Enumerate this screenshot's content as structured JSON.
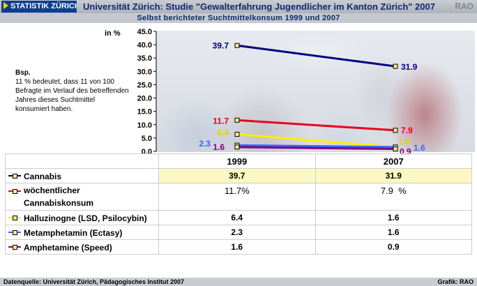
{
  "header": {
    "logo": "STATISTIK ZÜRICH",
    "title": "Universität Zürich: Studie \"Gewalterfahrung Jugendlicher im Kanton Zürich\" 2007",
    "tag": "RAO"
  },
  "subtitle": "Selbst berichteter Suchtmittelkonsum 1999 und 2007",
  "note": {
    "title": "Bsp.",
    "text": "11 % bedeutet, dass 11 von 100 Befragte im Verlauf des betreffenden Jahres dieses Suchtmittel konsumiert haben."
  },
  "chart_data": {
    "type": "line",
    "ylabel": "in %",
    "ylim": [
      0,
      45
    ],
    "y_ticks": [
      "0.0",
      "5.0",
      "10.0",
      "15.0",
      "20.0",
      "25.0",
      "30.0",
      "35.0",
      "40.0",
      "45.0"
    ],
    "x": [
      "1999",
      "2007"
    ],
    "series": [
      {
        "name": "Cannabis",
        "values": [
          39.7,
          31.9
        ],
        "labels": [
          "39.7",
          "31.9"
        ],
        "color": "#000080"
      },
      {
        "name": "wöchentlicher Cannabiskonsum",
        "values": [
          11.7,
          7.9
        ],
        "labels": [
          "11.7",
          "7.9"
        ],
        "color": "#e8001c"
      },
      {
        "name": "Halluzinogne (LSD, Psilocybin)",
        "values": [
          6.4,
          1.6
        ],
        "labels": [
          "6.4",
          "1.6"
        ],
        "color": "#ffee00"
      },
      {
        "name": "Metamphetamin (Ectasy)",
        "values": [
          2.3,
          1.6
        ],
        "labels": [
          "2.3",
          "1.6"
        ],
        "color": "#3366ff"
      },
      {
        "name": "Amphetamine (Speed)",
        "values": [
          1.6,
          0.9
        ],
        "labels": [
          "1.6",
          "0.9"
        ],
        "color": "#800080"
      }
    ]
  },
  "table": {
    "years": [
      "1999",
      "2007"
    ],
    "rows": [
      {
        "label": "Cannabis",
        "v1999": "39.7",
        "v2007": "31.9"
      },
      {
        "label_line1": "wöchentlicher",
        "label_line2": "Cannabiskonsum",
        "v1999": "11.7%",
        "v2007": "7.9  %"
      },
      {
        "label": "Halluzinogne (LSD, Psilocybin)",
        "v1999": "6.4",
        "v2007": "1.6"
      },
      {
        "label": "Metamphetamin (Ectasy)",
        "v1999": "2.3",
        "v2007": "1.6"
      },
      {
        "label": "Amphetamine (Speed)",
        "v1999": "1.6",
        "v2007": "0.9"
      }
    ]
  },
  "footer": {
    "source": "Datenquelle: Universität Zürich, Pädagogisches Institut 2007",
    "credit": "Grafik: RAO"
  }
}
